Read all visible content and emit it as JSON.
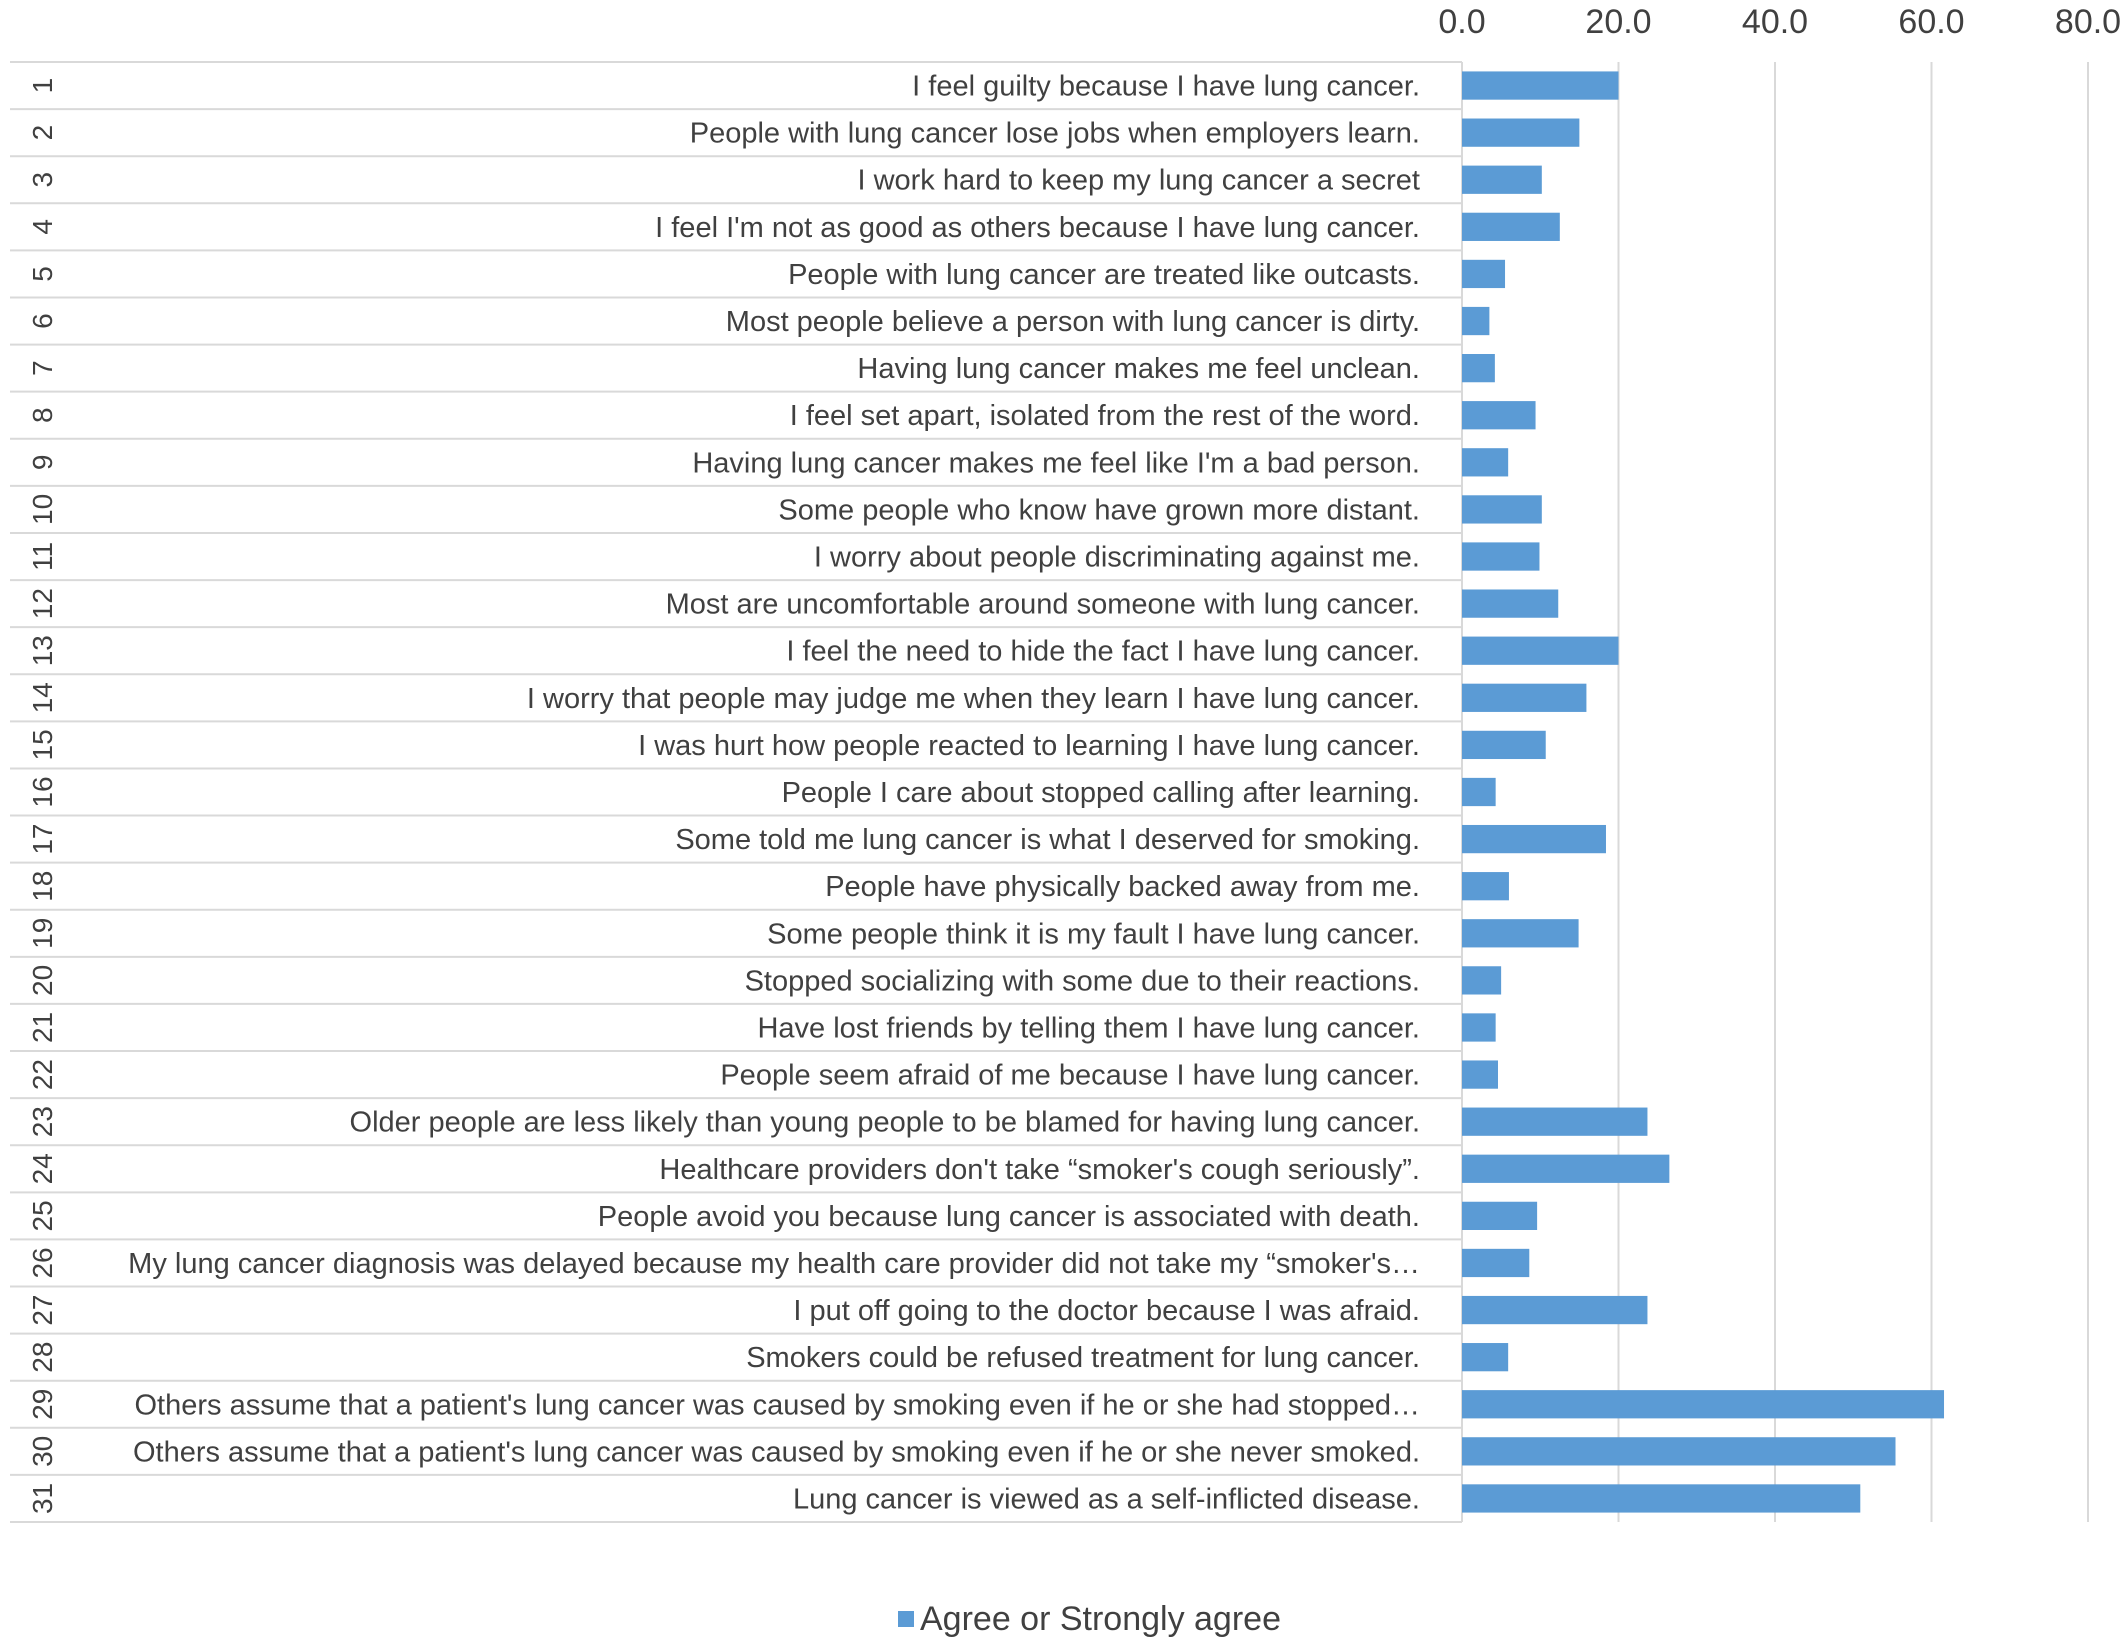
{
  "chart_data": {
    "type": "bar",
    "orientation": "horizontal",
    "xlim": [
      0,
      80
    ],
    "x_ticks": [
      "0.0",
      "20.0",
      "40.0",
      "60.0",
      "80.0"
    ],
    "grid": true,
    "legend_position": "bottom",
    "series": [
      {
        "name": "Agree or Strongly agree",
        "color": "#5b9bd5",
        "values": [
          20.0,
          15.0,
          10.2,
          12.5,
          5.5,
          3.5,
          4.2,
          9.4,
          5.9,
          10.2,
          9.9,
          12.3,
          20.0,
          15.9,
          10.7,
          4.3,
          18.4,
          6.0,
          14.9,
          5.0,
          4.3,
          4.6,
          23.7,
          26.5,
          9.6,
          8.6,
          23.7,
          5.9,
          61.6,
          55.4,
          50.9
        ]
      }
    ],
    "categories": [
      {
        "num": "1",
        "label": "I feel guilty because I have lung cancer."
      },
      {
        "num": "2",
        "label": "People with lung cancer lose jobs when employers learn."
      },
      {
        "num": "3",
        "label": "I work hard to keep my lung cancer a secret"
      },
      {
        "num": "4",
        "label": "I feel I'm not as good as others because I have lung cancer."
      },
      {
        "num": "5",
        "label": "People with lung cancer are treated like outcasts."
      },
      {
        "num": "6",
        "label": "Most people believe a person with lung cancer is dirty."
      },
      {
        "num": "7",
        "label": "Having lung cancer makes me feel unclean."
      },
      {
        "num": "8",
        "label": "I feel set apart, isolated from the rest of the word."
      },
      {
        "num": "9",
        "label": "Having lung cancer makes me feel like I'm a bad person."
      },
      {
        "num": "10",
        "label": "Some people who know have grown more distant."
      },
      {
        "num": "11",
        "label": "I worry about people discriminating against me."
      },
      {
        "num": "12",
        "label": "Most are uncomfortable around someone with lung cancer."
      },
      {
        "num": "13",
        "label": "I feel the need to hide the fact I have lung cancer."
      },
      {
        "num": "14",
        "label": "I worry that people may judge me when they learn I have lung cancer."
      },
      {
        "num": "15",
        "label": "I was hurt how people reacted to learning I have lung cancer."
      },
      {
        "num": "16",
        "label": "People I care about stopped calling after learning."
      },
      {
        "num": "17",
        "label": "Some told me lung cancer is what I deserved for smoking."
      },
      {
        "num": "18",
        "label": "People have physically backed away from me."
      },
      {
        "num": "19",
        "label": "Some people think it is my fault I have lung cancer."
      },
      {
        "num": "20",
        "label": "Stopped socializing with some due to their reactions."
      },
      {
        "num": "21",
        "label": "Have lost friends by telling them I have lung cancer."
      },
      {
        "num": "22",
        "label": "People seem afraid of me because I have lung cancer."
      },
      {
        "num": "23",
        "label": "Older people are less likely than young people to be blamed for having lung cancer."
      },
      {
        "num": "24",
        "label": "Healthcare providers don't take “smoker's cough seriously”."
      },
      {
        "num": "25",
        "label": "People avoid you because lung cancer is associated with death."
      },
      {
        "num": "26",
        "label": "My lung cancer diagnosis was delayed because my health care provider did not take my “smoker's…"
      },
      {
        "num": "27",
        "label": "I put off going to the doctor because I was afraid."
      },
      {
        "num": "28",
        "label": "Smokers could be refused treatment for lung cancer."
      },
      {
        "num": "29",
        "label": "Others assume that a patient's lung cancer was caused by smoking even if he or she had stopped…"
      },
      {
        "num": "30",
        "label": "Others assume that a patient's lung cancer was caused by smoking even if he or she never smoked."
      },
      {
        "num": "31",
        "label": "Lung cancer is viewed as a self-inflicted disease."
      }
    ]
  }
}
